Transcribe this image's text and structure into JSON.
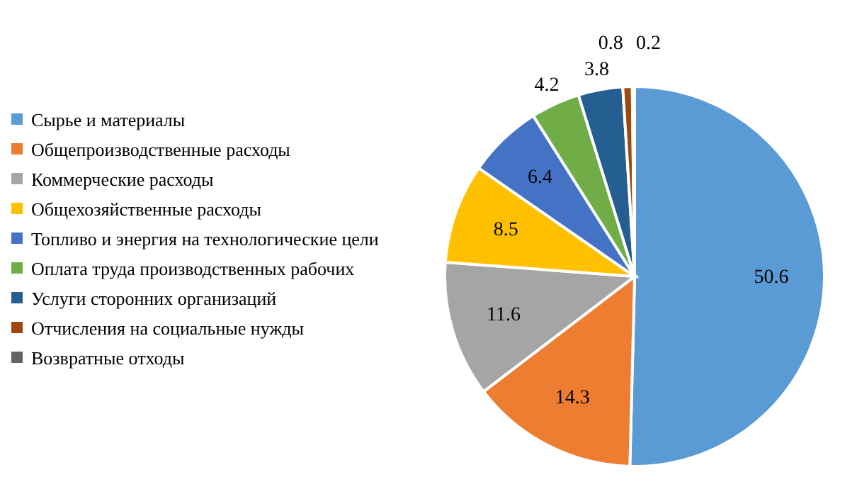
{
  "chart_data": {
    "type": "pie",
    "categories": [
      "Сырье и материалы",
      "Общепроизводственные расходы",
      "Коммерческие расходы",
      "Общехозяйственные расходы",
      "Топливо и энергия на технологические цели",
      "Оплата труда производственных рабочих",
      "Услуги сторонних организаций",
      "Отчисления на социальные нужды",
      "Возвратные отходы"
    ],
    "values": [
      50.6,
      14.3,
      11.6,
      8.5,
      6.4,
      4.2,
      3.8,
      0.8,
      0.2
    ],
    "colors": [
      "#5b9bd5",
      "#ed7d31",
      "#a5a5a5",
      "#ffc000",
      "#4472c4",
      "#70ad47",
      "#255e91",
      "#9e480e",
      "#636363"
    ],
    "data_labels": true,
    "legend": "left"
  }
}
